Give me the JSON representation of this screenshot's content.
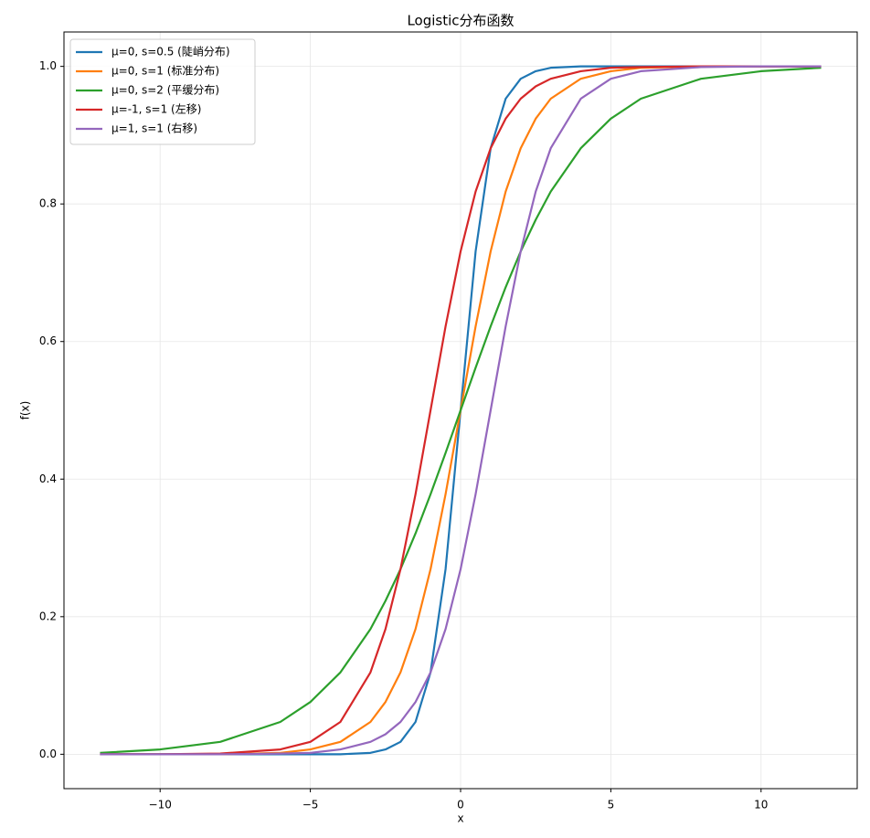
{
  "chart_data": {
    "type": "line",
    "title": "Logistic分布函数",
    "xlabel": "x",
    "ylabel": "f(x)",
    "x": [
      -12,
      -10,
      -8,
      -6,
      -5,
      -4,
      -3,
      -2.5,
      -2,
      -1.5,
      -1,
      -0.5,
      0,
      0.5,
      1,
      1.5,
      2,
      2.5,
      3,
      4,
      5,
      6,
      8,
      10,
      12
    ],
    "series": [
      {
        "name": "μ=0, s=0.5 (陡峭分布)",
        "color": "#1f77b4",
        "values": [
          0,
          0,
          0,
          0,
          0,
          0,
          0.002,
          0.007,
          0.018,
          0.047,
          0.119,
          0.269,
          0.5,
          0.731,
          0.881,
          0.953,
          0.982,
          0.993,
          0.998,
          1,
          1,
          1,
          1,
          1,
          1
        ]
      },
      {
        "name": "μ=0, s=1 (标准分布)",
        "color": "#ff7f0e",
        "values": [
          0,
          0,
          0,
          0.002,
          0.007,
          0.018,
          0.047,
          0.076,
          0.119,
          0.182,
          0.269,
          0.378,
          0.5,
          0.622,
          0.731,
          0.818,
          0.881,
          0.924,
          0.953,
          0.982,
          0.993,
          0.998,
          1,
          1,
          1
        ]
      },
      {
        "name": "μ=0, s=2 (平缓分布)",
        "color": "#2ca02c",
        "values": [
          0.002,
          0.007,
          0.018,
          0.047,
          0.076,
          0.119,
          0.182,
          0.223,
          0.269,
          0.321,
          0.378,
          0.438,
          0.5,
          0.562,
          0.622,
          0.679,
          0.731,
          0.777,
          0.818,
          0.881,
          0.924,
          0.953,
          0.982,
          0.993,
          0.998
        ]
      },
      {
        "name": "μ=-1, s=1 (左移)",
        "color": "#d62728",
        "values": [
          0,
          0,
          0.001,
          0.007,
          0.018,
          0.047,
          0.119,
          0.182,
          0.269,
          0.378,
          0.5,
          0.622,
          0.731,
          0.818,
          0.881,
          0.924,
          0.953,
          0.971,
          0.982,
          0.993,
          0.998,
          0.999,
          1,
          1,
          1
        ]
      },
      {
        "name": "μ=1, s=1 (右移)",
        "color": "#9467bd",
        "values": [
          0,
          0,
          0,
          0.001,
          0.002,
          0.007,
          0.018,
          0.029,
          0.047,
          0.076,
          0.119,
          0.182,
          0.269,
          0.378,
          0.5,
          0.622,
          0.731,
          0.818,
          0.881,
          0.953,
          0.982,
          0.993,
          0.999,
          1,
          1
        ]
      }
    ],
    "xlim": [
      -13.2,
      13.2
    ],
    "xticks": [
      {
        "value": -10,
        "label": "−10"
      },
      {
        "value": -5,
        "label": "−5"
      },
      0,
      5,
      10
    ],
    "ylim": [
      -0.05,
      1.05
    ],
    "yticks": [
      {
        "value": 0,
        "label": "0.0"
      },
      0.2,
      0.4,
      0.6,
      0.8,
      {
        "value": 1,
        "label": "1.0"
      }
    ],
    "grid": true,
    "legend": "upper-left"
  }
}
